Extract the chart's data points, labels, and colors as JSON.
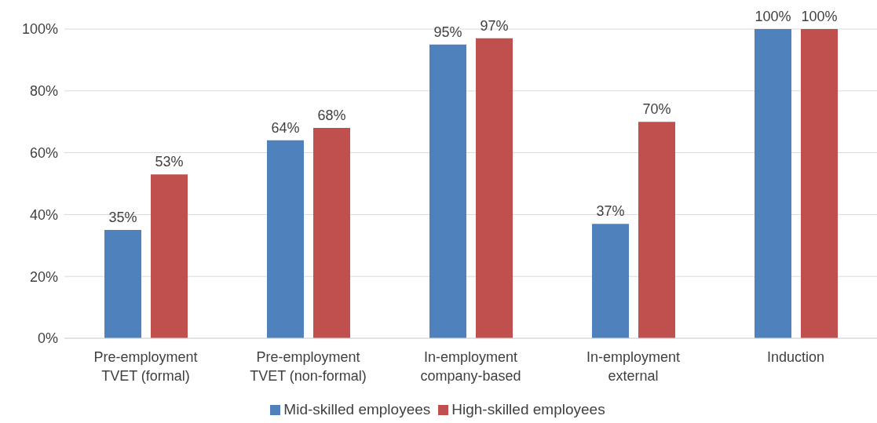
{
  "chart_data": {
    "type": "bar",
    "categories": [
      "Pre-employment\nTVET (formal)",
      "Pre-employment\nTVET (non-formal)",
      "In-employment\ncompany-based",
      "In-employment\nexternal",
      "Induction"
    ],
    "series": [
      {
        "name": "Mid-skilled employees",
        "color": "#4f81bd",
        "values": [
          35,
          64,
          95,
          37,
          100
        ],
        "value_labels": [
          "35%",
          "64%",
          "95%",
          "37%",
          "100%"
        ]
      },
      {
        "name": "High-skilled employees",
        "color": "#c0504d",
        "values": [
          53,
          68,
          97,
          70,
          100
        ],
        "value_labels": [
          "53%",
          "68%",
          "97%",
          "70%",
          "100%"
        ]
      }
    ],
    "ylim": [
      0,
      100
    ],
    "yticks": [
      {
        "value": 0,
        "label": "0%"
      },
      {
        "value": 20,
        "label": "20%"
      },
      {
        "value": 40,
        "label": "40%"
      },
      {
        "value": 60,
        "label": "60%"
      },
      {
        "value": 80,
        "label": "80%"
      },
      {
        "value": 100,
        "label": "100%"
      }
    ],
    "grid": "y",
    "legend": "bottom"
  }
}
